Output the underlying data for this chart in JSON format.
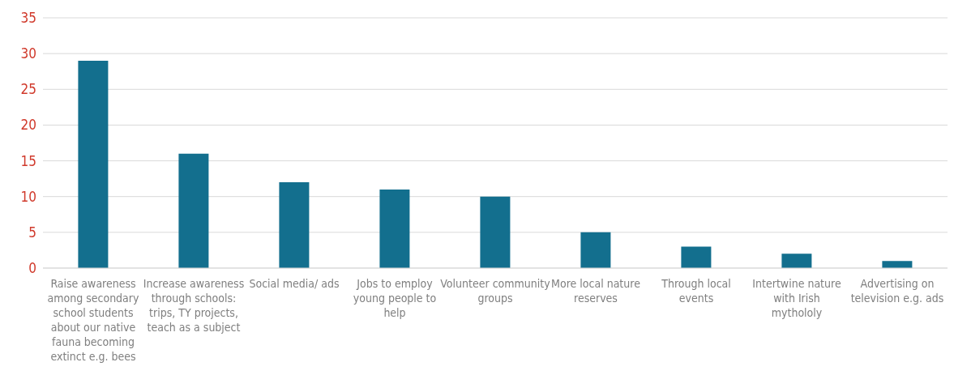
{
  "chart_data": {
    "type": "bar",
    "categories": [
      "Raise awareness among secondary school students about our native fauna becoming extinct e.g. bees",
      "Increase awareness through schools: trips, TY projects, teach as a subject",
      "Social media/ ads",
      "Jobs to employ young people to help",
      "Volunteer community groups",
      "More local nature reserves",
      "Through local events",
      "Intertwine nature with Irish mythololy",
      "Advertising on television e.g. ads"
    ],
    "values": [
      29,
      16,
      12,
      11,
      10,
      5,
      3,
      2,
      1
    ],
    "color": "#136f8e",
    "ylim": [
      0,
      35
    ],
    "yticks": [
      0,
      5,
      10,
      15,
      20,
      25,
      30,
      35
    ],
    "grid": "y",
    "legend": false
  }
}
